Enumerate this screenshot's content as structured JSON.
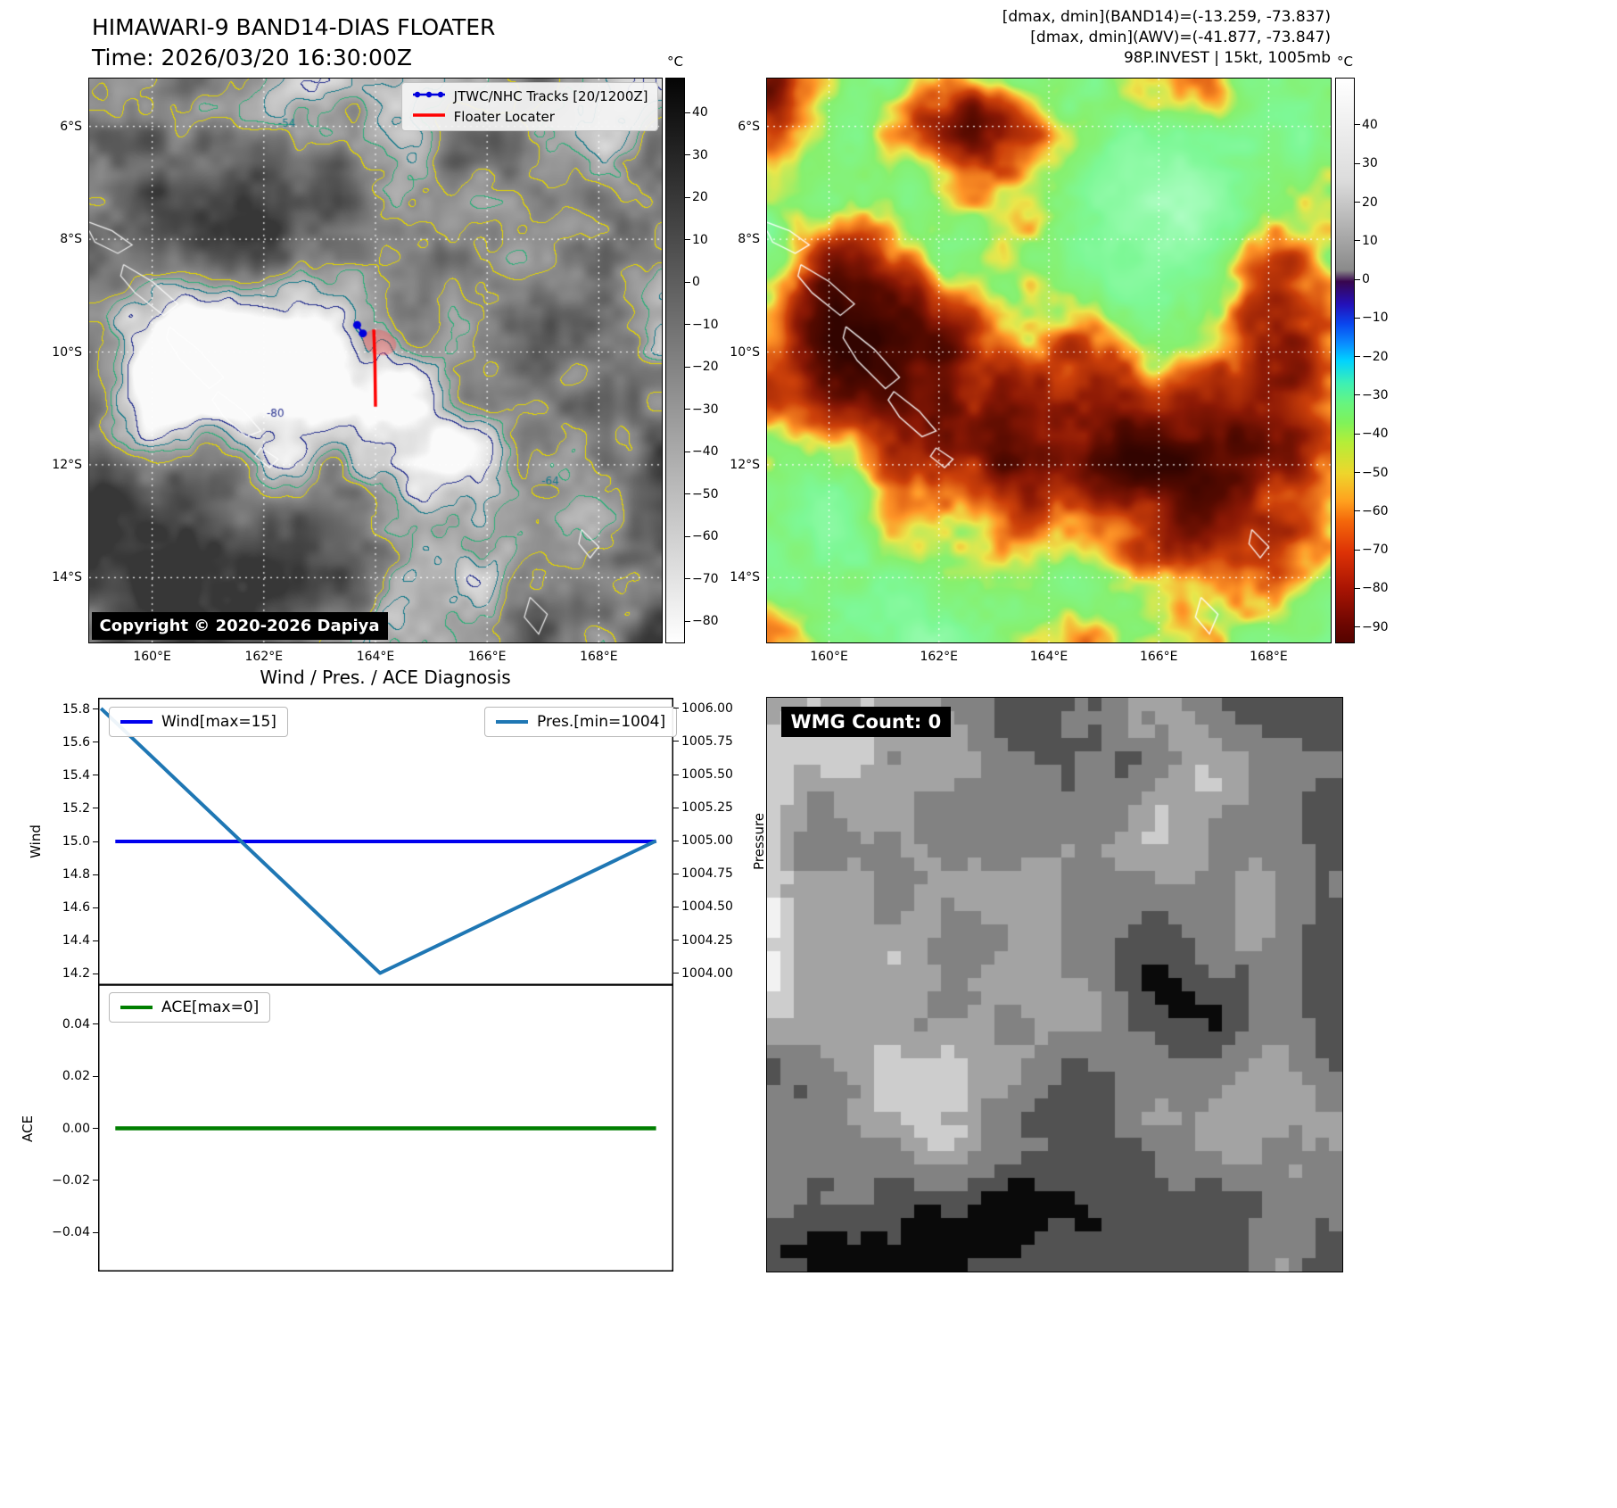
{
  "band14": {
    "title": "HIMAWARI-9 BAND14-DIAS FLOATER",
    "time": "Time: 2026/03/20 16:30:00Z",
    "legend": [
      {
        "label": "JTWC/NHC Tracks [20/1200Z]",
        "color": "#0000dd"
      },
      {
        "label": "Floater Locater",
        "color": "#ff0000"
      }
    ],
    "copyright": "Copyright © 2020-2026 Dapiya",
    "contour_labels": [
      "-54",
      "-64",
      "-80"
    ],
    "lat_ticks": [
      "6°S",
      "8°S",
      "10°S",
      "12°S",
      "14°S"
    ],
    "lon_ticks": [
      "160°E",
      "162°E",
      "164°E",
      "166°E",
      "168°E"
    ],
    "colorbar": {
      "unit": "°C",
      "tick_labels": [
        "40",
        "30",
        "20",
        "10",
        "0",
        "−10",
        "−20",
        "−30",
        "−40",
        "−50",
        "−60",
        "−70",
        "−80"
      ],
      "tick_values": [
        40,
        30,
        20,
        10,
        0,
        -10,
        -20,
        -30,
        -40,
        -50,
        -60,
        -70,
        -80
      ]
    }
  },
  "awv": {
    "header_lines": [
      "[dmax, dmin](BAND14)=(-13.259, -73.837)",
      "[dmax, dmin](AWV)=(-41.877, -73.847)",
      "98P.INVEST | 15kt, 1005mb"
    ],
    "lat_ticks": [
      "6°S",
      "8°S",
      "10°S",
      "12°S",
      "14°S"
    ],
    "lon_ticks": [
      "160°E",
      "162°E",
      "164°E",
      "166°E",
      "168°E"
    ],
    "colorbar": {
      "unit": "°C",
      "tick_labels": [
        "40",
        "30",
        "20",
        "10",
        "0",
        "−10",
        "−20",
        "−30",
        "−40",
        "−50",
        "−60",
        "−70",
        "−80",
        "−90"
      ],
      "tick_values": [
        40,
        30,
        20,
        10,
        0,
        -10,
        -20,
        -30,
        -40,
        -50,
        -60,
        -70,
        -80,
        -90
      ]
    }
  },
  "diagnosis": {
    "title": "Wind / Pres. / ACE Diagnosis",
    "wind_legend": "Wind[max=15]",
    "pres_legend": "Pres.[min=1004]",
    "ace_legend": "ACE[max=0]",
    "wind_axis": "Wind",
    "pressure_axis": "Pressure",
    "ace_axis": "ACE"
  },
  "wmg": {
    "count_label": "WMG Count: 0"
  },
  "chart_data": [
    {
      "type": "line",
      "title": "Wind / Pres. / ACE Diagnosis",
      "x_axis_labels_visible": false,
      "axes": {
        "left": {
          "label": "Wind",
          "lim": [
            14.13,
            15.87
          ],
          "tick_labels": [
            "15.8",
            "15.6",
            "15.4",
            "15.2",
            "15.0",
            "14.8",
            "14.6",
            "14.4",
            "14.2"
          ],
          "tick_values": [
            15.8,
            15.6,
            15.4,
            15.2,
            15.0,
            14.8,
            14.6,
            14.4,
            14.2
          ]
        },
        "right": {
          "label": "Pressure",
          "lim": [
            1003.91,
            1006.08
          ],
          "tick_labels": [
            "1006.00",
            "1005.75",
            "1005.50",
            "1005.25",
            "1005.00",
            "1004.75",
            "1004.50",
            "1004.25",
            "1004.00"
          ],
          "tick_values": [
            1006.0,
            1005.75,
            1005.5,
            1005.25,
            1005.0,
            1004.75,
            1004.5,
            1004.25,
            1004.0
          ]
        }
      },
      "series": [
        {
          "name": "Wind[max=15]",
          "axis": "left",
          "color": "#0000ee",
          "width": 4,
          "x": [
            0.03,
            0.97
          ],
          "values": [
            15,
            15
          ]
        },
        {
          "name": "Pres.[min=1004]",
          "axis": "right",
          "color": "#1f77b4",
          "width": 4,
          "x": [
            0.005,
            0.49,
            0.97
          ],
          "values": [
            1006,
            1004,
            1005
          ]
        }
      ]
    },
    {
      "type": "line",
      "axes": {
        "left": {
          "label": "ACE",
          "lim": [
            -0.055,
            0.055
          ],
          "tick_labels": [
            "0.04",
            "0.02",
            "0.00",
            "−0.02",
            "−0.04"
          ],
          "tick_values": [
            0.04,
            0.02,
            0.0,
            -0.02,
            -0.04
          ]
        }
      },
      "series": [
        {
          "name": "ACE[max=0]",
          "axis": "left",
          "color": "#007f00",
          "width": 4.5,
          "x": [
            0.03,
            0.97
          ],
          "values": [
            0,
            0
          ]
        }
      ]
    }
  ]
}
